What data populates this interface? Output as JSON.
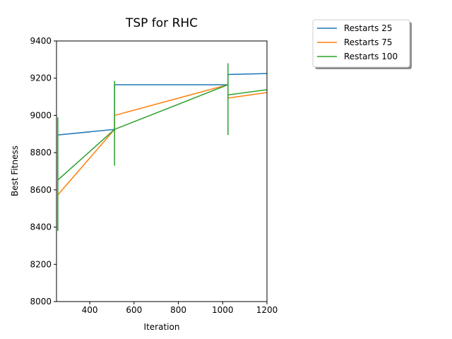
{
  "chart_data": {
    "type": "line",
    "title": "TSP for RHC",
    "x_label": "Iteration",
    "y_label": "Best Fitness",
    "xlim": [
      250,
      1200
    ],
    "xticks": [
      400,
      600,
      800,
      1000,
      1200
    ],
    "ylim": [
      8000,
      9400
    ],
    "yticks": [
      8000,
      8200,
      8400,
      8600,
      8800,
      9000,
      9200,
      9400
    ],
    "legend_position": "upper right outside",
    "series": [
      {
        "name": "Restarts 25",
        "color": "#1f77b4",
        "x": [
          256,
          512,
          512,
          1024,
          1024,
          1200
        ],
        "values": [
          8895,
          8925,
          9165,
          9165,
          9220,
          9225
        ]
      },
      {
        "name": "Restarts 75",
        "color": "#ff7f0e",
        "x": [
          256,
          512,
          512,
          1024,
          1024,
          1200
        ],
        "values": [
          8573,
          8925,
          9000,
          9165,
          9093,
          9123
        ]
      },
      {
        "name": "Restarts 100",
        "color": "#2ca02c",
        "x": [
          256,
          256,
          256,
          512,
          512,
          512,
          512,
          1024,
          1024,
          1024,
          1024,
          1200
        ],
        "values": [
          8990,
          8380,
          8653,
          8925,
          8730,
          9185,
          8925,
          9165,
          9280,
          8895,
          9110,
          9138
        ]
      }
    ]
  }
}
